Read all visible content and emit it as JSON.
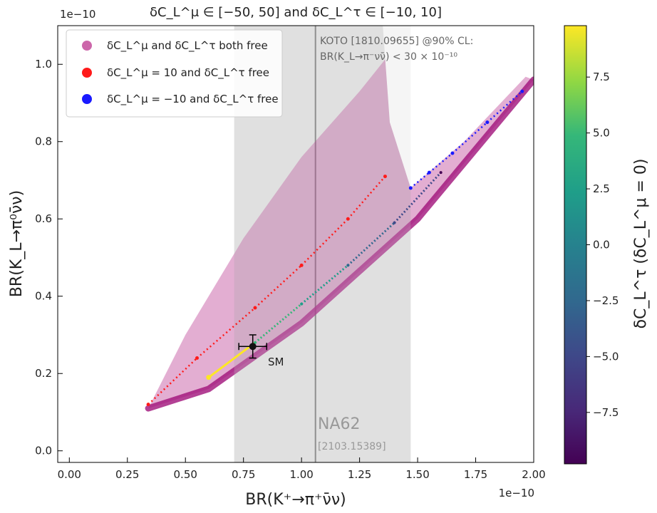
{
  "title": "δC_L^μ ∈ [−50, 50] and δC_L^τ ∈ [−10, 10]",
  "chart_data": {
    "type": "scatter",
    "xlabel": "BR(K⁺→π⁺ν̄ν)",
    "ylabel": "BR(K_L→π⁰ν̄ν)",
    "x_exponent": "1e−10",
    "y_exponent": "1e−10",
    "xlim": [
      -0.05,
      2.0
    ],
    "ylim": [
      -0.03,
      1.1
    ],
    "x_ticks": [
      "0.00",
      "0.25",
      "0.50",
      "0.75",
      "1.00",
      "1.25",
      "1.50",
      "1.75",
      "2.00"
    ],
    "x_tick_values": [
      0,
      0.25,
      0.5,
      0.75,
      1.0,
      1.25,
      1.5,
      1.75,
      2.0
    ],
    "y_ticks": [
      "0.0",
      "0.2",
      "0.4",
      "0.6",
      "0.8",
      "1.0"
    ],
    "y_tick_values": [
      0,
      0.2,
      0.4,
      0.6,
      0.8,
      1.0
    ],
    "legend_position": "top-left",
    "series": [
      {
        "name": "δC_L^μ and δC_L^τ both free",
        "color": "#cc66aa",
        "region": "band",
        "vertex": [
          0.34,
          0.11
        ],
        "upper_edge": [
          [
            0.34,
            0.11
          ],
          [
            0.5,
            0.3
          ],
          [
            0.75,
            0.55
          ],
          [
            1.0,
            0.76
          ],
          [
            1.25,
            0.93
          ],
          [
            1.45,
            1.08
          ]
        ],
        "lower_edge": [
          [
            0.34,
            0.11
          ],
          [
            0.6,
            0.16
          ],
          [
            1.0,
            0.33
          ],
          [
            1.5,
            0.6
          ],
          [
            2.0,
            0.96
          ]
        ],
        "notch": [
          [
            1.35,
            1.1
          ],
          [
            1.38,
            0.85
          ],
          [
            1.47,
            0.68
          ],
          [
            1.7,
            0.8
          ],
          [
            2.0,
            0.99
          ]
        ]
      },
      {
        "name": "δC_L^μ = 10 and δC_L^τ free",
        "color": "#ff1a1a",
        "points": [
          [
            0.34,
            0.12
          ],
          [
            0.55,
            0.24
          ],
          [
            0.8,
            0.37
          ],
          [
            1.0,
            0.48
          ],
          [
            1.2,
            0.6
          ],
          [
            1.36,
            0.71
          ]
        ]
      },
      {
        "name": "δC_L^μ = −10 and δC_L^τ free",
        "color": "#1a1aff",
        "points": [
          [
            1.47,
            0.68
          ],
          [
            1.55,
            0.72
          ],
          [
            1.65,
            0.77
          ],
          [
            1.8,
            0.85
          ],
          [
            1.95,
            0.93
          ]
        ]
      },
      {
        "name": "δC_L^τ (δC_L^μ = 0)",
        "colormap": "viridis",
        "cmin": -9.8,
        "cmax": 9.8,
        "points": [
          [
            0.6,
            0.19
          ],
          [
            0.8,
            0.28
          ],
          [
            1.0,
            0.38
          ],
          [
            1.2,
            0.48
          ],
          [
            1.4,
            0.59
          ],
          [
            1.6,
            0.72
          ]
        ]
      }
    ],
    "sm_point": {
      "label": "SM",
      "x": 0.79,
      "y": 0.27,
      "xerr": 0.06,
      "yerr": 0.03
    },
    "exclusion_band": {
      "x_range": [
        0.71,
        1.47
      ],
      "central": 1.06,
      "label": "NA62",
      "reference": "[2103.15389]"
    },
    "annotation": {
      "line1": "KOTO [1810.09655] @90% CL:",
      "line2": "BR(K_L→π⁻νν̄) < 30 × 10⁻¹⁰"
    },
    "colorbar": {
      "label": "δC_L^τ (δC_L^μ = 0)",
      "ticks": [
        "7.5",
        "5.0",
        "2.5",
        "0.0",
        "−2.5",
        "−5.0",
        "−7.5"
      ],
      "tick_values": [
        7.5,
        5.0,
        2.5,
        0.0,
        -2.5,
        -5.0,
        -7.5
      ],
      "range": [
        -9.8,
        9.8
      ],
      "colormap": "viridis"
    }
  }
}
